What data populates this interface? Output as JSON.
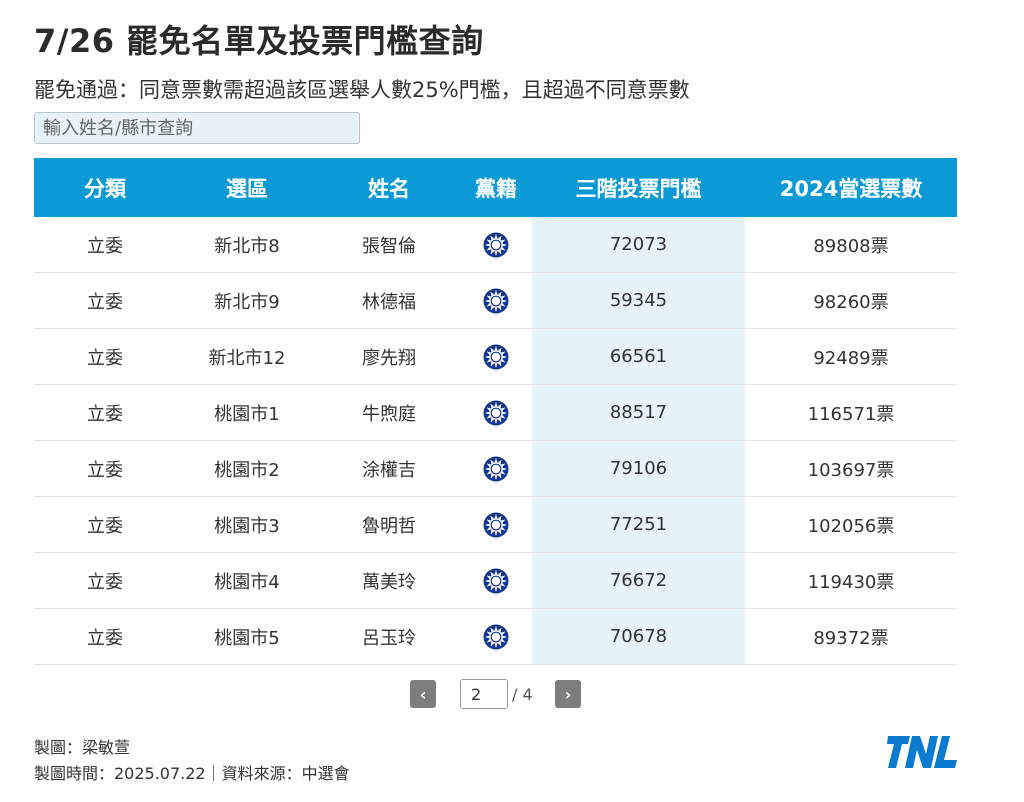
{
  "header": {
    "title": "7/26 罷免名單及投票門檻查詢",
    "subtitle": "罷免通過：同意票數需超過該區選舉人數25%門檻，且超過不同意票數"
  },
  "search": {
    "placeholder": "輸入姓名/縣市查詢",
    "value": ""
  },
  "table": {
    "columns": [
      "分類",
      "選區",
      "姓名",
      "黨籍",
      "三階投票門檻",
      "2024當選票數"
    ],
    "party_icon": "kmt-emblem-icon",
    "highlight_color": "#e6f3f8",
    "header_color": "#0b9ad6",
    "rows": [
      {
        "category": "立委",
        "district": "新北市8",
        "name": "張智倫",
        "party": "kmt-emblem-icon",
        "threshold": "72073",
        "votes_2024": "89808票"
      },
      {
        "category": "立委",
        "district": "新北市9",
        "name": "林德福",
        "party": "kmt-emblem-icon",
        "threshold": "59345",
        "votes_2024": "98260票"
      },
      {
        "category": "立委",
        "district": "新北市12",
        "name": "廖先翔",
        "party": "kmt-emblem-icon",
        "threshold": "66561",
        "votes_2024": "92489票"
      },
      {
        "category": "立委",
        "district": "桃園市1",
        "name": "牛煦庭",
        "party": "kmt-emblem-icon",
        "threshold": "88517",
        "votes_2024": "116571票"
      },
      {
        "category": "立委",
        "district": "桃園市2",
        "name": "涂權吉",
        "party": "kmt-emblem-icon",
        "threshold": "79106",
        "votes_2024": "103697票"
      },
      {
        "category": "立委",
        "district": "桃園市3",
        "name": "魯明哲",
        "party": "kmt-emblem-icon",
        "threshold": "77251",
        "votes_2024": "102056票"
      },
      {
        "category": "立委",
        "district": "桃園市4",
        "name": "萬美玲",
        "party": "kmt-emblem-icon",
        "threshold": "76672",
        "votes_2024": "119430票"
      },
      {
        "category": "立委",
        "district": "桃園市5",
        "name": "呂玉玲",
        "party": "kmt-emblem-icon",
        "threshold": "70678",
        "votes_2024": "89372票"
      }
    ]
  },
  "pagination": {
    "prev_label": "‹",
    "next_label": "›",
    "current": "2",
    "total": "/ 4"
  },
  "footer": {
    "credit": "製圖：梁敏萱",
    "meta": "製圖時間：2025.07.22｜資料來源：中選會",
    "logo_icon": "tnl-logo-icon",
    "logo_color": "#0b7bd0"
  }
}
